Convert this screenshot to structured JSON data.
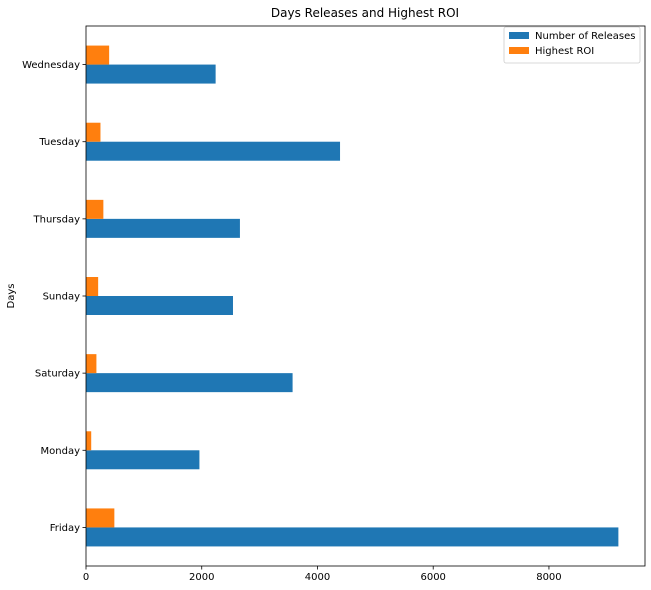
{
  "chart_data": {
    "type": "bar",
    "orientation": "horizontal",
    "title": "Days Releases and Highest ROI",
    "xlabel": "",
    "ylabel": "Days",
    "categories": [
      "Friday",
      "Monday",
      "Saturday",
      "Sunday",
      "Thursday",
      "Tuesday",
      "Wednesday"
    ],
    "series": [
      {
        "name": "Number of Releases",
        "color": "#1f77b4",
        "values": [
          9200,
          1960,
          3570,
          2540,
          2660,
          4390,
          2240
        ]
      },
      {
        "name": "Highest ROI",
        "color": "#ff7f0e",
        "values": [
          490,
          90,
          180,
          210,
          300,
          250,
          400
        ]
      }
    ],
    "xlim": [
      0,
      9660
    ],
    "xticks": [
      0,
      2000,
      4000,
      6000,
      8000
    ],
    "grid": false,
    "legend_position": "top-right"
  }
}
